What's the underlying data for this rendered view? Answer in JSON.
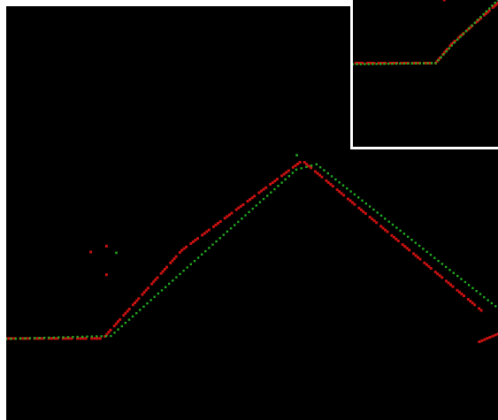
{
  "colors": {
    "background": "#000000",
    "frame": "#ffffff",
    "red_series": "#cc1111",
    "green_series": "#22aa22"
  },
  "main_view": {
    "red_polyline": [
      [
        0,
        0.803
      ],
      [
        0.197,
        0.803
      ],
      [
        0.357,
        0.59
      ],
      [
        0.602,
        0.373
      ],
      [
        0.966,
        0.735
      ]
    ],
    "red_tail": [
      [
        0.962,
        0.811
      ],
      [
        1.0,
        0.792
      ]
    ],
    "red_outliers": [
      [
        0.172,
        0.594
      ],
      [
        0.204,
        0.58
      ],
      [
        0.204,
        0.649
      ]
    ],
    "green_polyline": [
      [
        0,
        0.804
      ],
      [
        0.213,
        0.797
      ],
      [
        0.59,
        0.395
      ],
      [
        0.631,
        0.382
      ],
      [
        0.995,
        0.725
      ]
    ],
    "green_outliers": [
      [
        0.591,
        0.36
      ],
      [
        0.224,
        0.596
      ]
    ]
  },
  "inset_view": {
    "red_polyline": [
      [
        0.02,
        0.43
      ],
      [
        0.57,
        0.43
      ],
      [
        0.68,
        0.3
      ],
      [
        1.0,
        0.02
      ]
    ],
    "green_polyline": [
      [
        0.0,
        0.438
      ],
      [
        0.57,
        0.43
      ],
      [
        0.7,
        0.29
      ],
      [
        1.0,
        0.0
      ]
    ],
    "red_outliers": [
      [
        0.63,
        0.0
      ]
    ]
  }
}
